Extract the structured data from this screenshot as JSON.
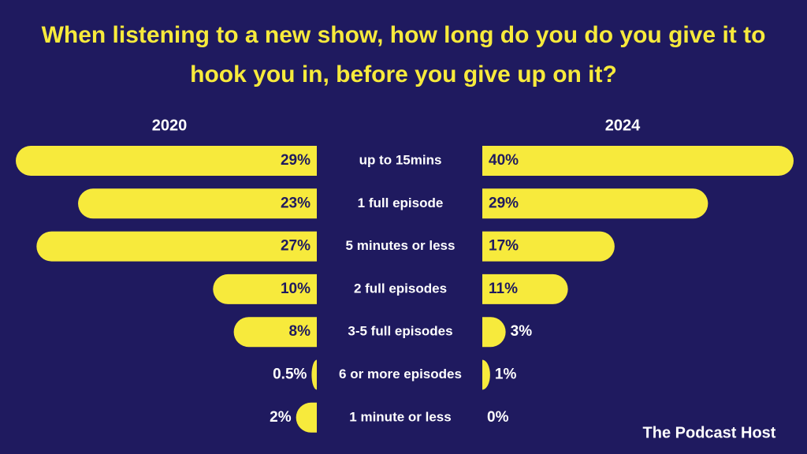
{
  "chart_data": {
    "type": "butterfly-bar",
    "title": "When listening to a new show, how long do you do you give it to hook you in, before you give up on it?",
    "categories": [
      "up to 15mins",
      "1 full episode",
      "5 minutes or less",
      "2 full episodes",
      "3-5 full episodes",
      "6 or more episodes",
      "1 minute or less"
    ],
    "series": [
      {
        "name": "2020",
        "color": "#f7ea3c",
        "values": [
          29,
          23,
          27,
          10,
          8,
          0.5,
          2
        ],
        "value_labels": [
          "29%",
          "23%",
          "27%",
          "10%",
          "8%",
          "0.5%",
          "2%"
        ]
      },
      {
        "name": "2024",
        "color": "#f7ea3c",
        "values": [
          40,
          29,
          17,
          11,
          3,
          1,
          0
        ],
        "value_labels": [
          "40%",
          "29%",
          "17%",
          "11%",
          "3%",
          "1%",
          "0%"
        ]
      }
    ],
    "brand": "The Podcast Host"
  }
}
